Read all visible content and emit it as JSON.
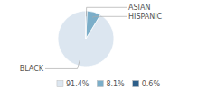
{
  "chart_data": {
    "type": "pie",
    "categories": [
      "BLACK",
      "HISPANIC",
      "ASIAN"
    ],
    "values": [
      91.4,
      8.1,
      0.6
    ],
    "value_labels": [
      "91.4%",
      "8.1%",
      "0.6%"
    ],
    "colors": [
      "#dce6f0",
      "#7baec9",
      "#2e5f8a"
    ],
    "legend": "bottom"
  }
}
